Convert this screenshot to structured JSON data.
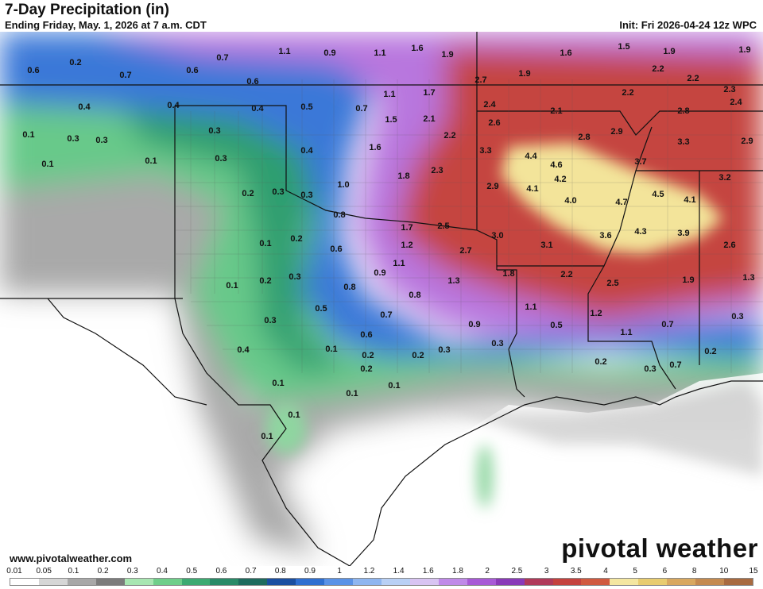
{
  "header": {
    "title": "7-Day Precipitation (in)",
    "subtitle": "Ending Friday, May. 1, 2026 at 7 a.m. CDT",
    "init": "Init: Fri 2026-04-24 12z WPC"
  },
  "footer": {
    "website": "www.pivotalweather.com",
    "brand": "pivotal weather"
  },
  "legend": {
    "ticks": [
      "0.01",
      "0.05",
      "0.1",
      "0.2",
      "0.3",
      "0.4",
      "0.5",
      "0.6",
      "0.7",
      "0.8",
      "0.9",
      "1",
      "1.2",
      "1.4",
      "1.6",
      "1.8",
      "2",
      "2.5",
      "3",
      "3.5",
      "4",
      "5",
      "6",
      "8",
      "10",
      "15"
    ],
    "colors": [
      "#ffffff",
      "#d6d6d6",
      "#a8a8a8",
      "#7c7c7c",
      "#a8e6b2",
      "#6fce8a",
      "#3daa72",
      "#2a8a68",
      "#1f6b5e",
      "#1b4fa0",
      "#2f6fd0",
      "#5a92e6",
      "#8fb6f0",
      "#b9d0f5",
      "#d8c4f2",
      "#c08ae8",
      "#a85ad6",
      "#8a3ab8",
      "#b03a5a",
      "#c4423e",
      "#d05a40",
      "#f4e6a0",
      "#e8cc70",
      "#d8a860",
      "#c48a50",
      "#a86a40"
    ]
  },
  "map_labels": [
    "0.6",
    "0.2",
    "0.7",
    "0.6",
    "0.7",
    "1.1",
    "0.9",
    "1.1",
    "1.6",
    "1.9",
    "1.6",
    "1.5",
    "1.9",
    "1.9",
    "0.6",
    "2.7",
    "1.9",
    "2.2",
    "2.2",
    "2.3",
    "0.4",
    "0.4",
    "0.4",
    "0.5",
    "0.7",
    "1.1",
    "1.7",
    "2.4",
    "2.1",
    "2.2",
    "2.8",
    "2.4",
    "0.1",
    "0.3",
    "0.3",
    "0.3",
    "0.4",
    "1.5",
    "2.1",
    "2.6",
    "2.8",
    "2.9",
    "3.3",
    "2.9",
    "0.1",
    "0.1",
    "0.3",
    "1.6",
    "2.2",
    "3.3",
    "4.4",
    "4.6",
    "3.7",
    "0.2",
    "0.3",
    "0.3",
    "1.0",
    "1.8",
    "2.3",
    "4.2",
    "0.8",
    "4.1",
    "2.9",
    "4.0",
    "4.7",
    "4.5",
    "4.1",
    "3.2",
    "1.7",
    "2.5",
    "3.0",
    "3.6",
    "4.3",
    "3.9",
    "0.1",
    "0.2",
    "1.2",
    "0.6",
    "2.7",
    "3.1",
    "2.6",
    "0.1",
    "0.2",
    "0.3",
    "1.1",
    "0.9",
    "1.3",
    "1.8",
    "2.2",
    "2.5",
    "1.9",
    "1.3",
    "0.8",
    "0.8",
    "0.5",
    "0.7",
    "1.1",
    "0.9",
    "0.5",
    "1.2",
    "1.1",
    "0.7",
    "0.3",
    "0.6",
    "0.1",
    "0.4",
    "0.3",
    "0.2",
    "0.2",
    "0.3",
    "0.3",
    "0.2",
    "0.3",
    "0.7",
    "0.2",
    "0.2",
    "0.1",
    "0.1",
    "0.1",
    "0.1",
    "0.1"
  ]
}
